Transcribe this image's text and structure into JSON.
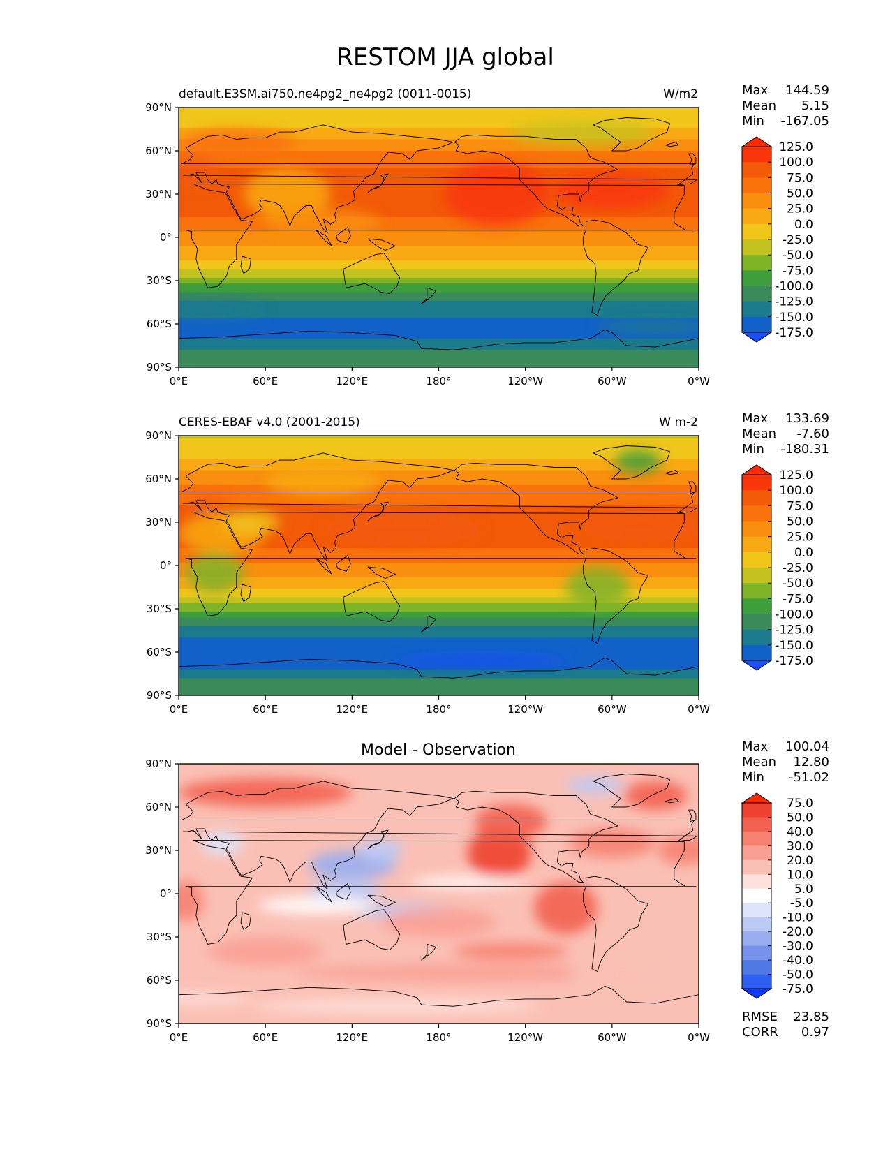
{
  "title": "RESTOM JJA global",
  "colors": {
    "levels_main": [
      "#1a4ff7",
      "#1261c9",
      "#1c7a8d",
      "#3a8a5a",
      "#3f9e3c",
      "#7fb328",
      "#c4c21f",
      "#f0c61b",
      "#f8a913",
      "#f98e0f",
      "#f9720b",
      "#f25a08",
      "#f9360a",
      "#ff2a00"
    ],
    "levels_diff": [
      "#0d39ff",
      "#2e5ff0",
      "#4f7ae6",
      "#7591eb",
      "#98aef0",
      "#bccaf6",
      "#dde4fb",
      "#ffffff",
      "#fde1dc",
      "#fbc0b5",
      "#f9a093",
      "#f68170",
      "#f2614f",
      "#ee412f",
      "#ff2a00"
    ],
    "land_outline": "#000000"
  },
  "panels": [
    {
      "id": "model",
      "left_title": "default.E3SM.ai750.ne4pg2_ne4pg2 (0011-0015)",
      "center_title": "",
      "units": "W/m2",
      "stats": [
        {
          "label": "Max",
          "value": "144.59"
        },
        {
          "label": "Mean",
          "value": "5.15"
        },
        {
          "label": "Min",
          "value": "-167.05"
        }
      ],
      "colorbar_ticks": [
        "125.0",
        "100.0",
        "75.0",
        "50.0",
        "25.0",
        "0.0",
        "-25.0",
        "-50.0",
        "-75.0",
        "-100.0",
        "-125.0",
        "-150.0",
        "-175.0"
      ],
      "extra_stats": []
    },
    {
      "id": "obs",
      "left_title": "CERES-EBAF v4.0 (2001-2015)",
      "center_title": "",
      "units": "W m-2",
      "stats": [
        {
          "label": "Max",
          "value": "133.69"
        },
        {
          "label": "Mean",
          "value": "-7.60"
        },
        {
          "label": "Min",
          "value": "-180.31"
        }
      ],
      "colorbar_ticks": [
        "125.0",
        "100.0",
        "75.0",
        "50.0",
        "25.0",
        "0.0",
        "-25.0",
        "-50.0",
        "-75.0",
        "-100.0",
        "-125.0",
        "-150.0",
        "-175.0"
      ],
      "extra_stats": []
    },
    {
      "id": "diff",
      "left_title": "",
      "center_title": "Model - Observation",
      "units": "",
      "stats": [
        {
          "label": "Max",
          "value": "100.04"
        },
        {
          "label": "Mean",
          "value": "12.80"
        },
        {
          "label": "Min",
          "value": "-51.02"
        }
      ],
      "colorbar_ticks": [
        "75.0",
        "50.0",
        "40.0",
        "30.0",
        "20.0",
        "10.0",
        "5.0",
        "-5.0",
        "-10.0",
        "-20.0",
        "-30.0",
        "-40.0",
        "-50.0",
        "-75.0"
      ],
      "extra_stats": [
        {
          "label": "RMSE",
          "value": "23.85"
        },
        {
          "label": "CORR",
          "value": "0.97"
        }
      ]
    }
  ],
  "chart_data": [
    {
      "type": "heatmap",
      "title": "default.E3SM.ai750.ne4pg2_ne4pg2 (0011-0015)",
      "units": "W/m2",
      "xlim": [
        0,
        360
      ],
      "ylim": [
        -90,
        90
      ],
      "x_ticks": [
        "0°E",
        "60°E",
        "120°E",
        "180°",
        "120°W",
        "60°W",
        "0°W"
      ],
      "y_ticks": [
        "90°N",
        "60°N",
        "30°N",
        "0°",
        "30°S",
        "60°S",
        "90°S"
      ],
      "levels": [
        -175,
        -150,
        -125,
        -100,
        -75,
        -50,
        -25,
        0,
        25,
        50,
        75,
        100,
        125
      ],
      "zonal_mean_profile": {
        "lat": [
          90,
          75,
          60,
          45,
          35,
          25,
          15,
          5,
          -5,
          -15,
          -25,
          -35,
          -45,
          -55,
          -62,
          -70,
          -80,
          -90
        ],
        "value": [
          -20,
          0,
          50,
          80,
          90,
          85,
          75,
          50,
          25,
          5,
          -40,
          -90,
          -130,
          -150,
          -165,
          -150,
          -120,
          -110
        ]
      },
      "max": 144.59,
      "mean": 5.15,
      "min": -167.05
    },
    {
      "type": "heatmap",
      "title": "CERES-EBAF v4.0 (2001-2015)",
      "units": "W m-2",
      "xlim": [
        0,
        360
      ],
      "ylim": [
        -90,
        90
      ],
      "x_ticks": [
        "0°E",
        "60°E",
        "120°E",
        "180°",
        "120°W",
        "60°W",
        "0°W"
      ],
      "y_ticks": [
        "90°N",
        "60°N",
        "30°N",
        "0°",
        "30°S",
        "60°S",
        "90°S"
      ],
      "levels": [
        -175,
        -150,
        -125,
        -100,
        -75,
        -50,
        -25,
        0,
        25,
        50,
        75,
        100,
        125
      ],
      "zonal_mean_profile": {
        "lat": [
          90,
          75,
          60,
          45,
          35,
          25,
          15,
          5,
          -5,
          -15,
          -25,
          -35,
          -45,
          -55,
          -62,
          -70,
          -80,
          -90
        ],
        "value": [
          -30,
          -5,
          40,
          70,
          85,
          90,
          80,
          55,
          30,
          5,
          -45,
          -95,
          -140,
          -165,
          -175,
          -160,
          -120,
          -110
        ]
      },
      "max": 133.69,
      "mean": -7.6,
      "min": -180.31
    },
    {
      "type": "heatmap",
      "title": "Model - Observation",
      "units": "",
      "xlim": [
        0,
        360
      ],
      "ylim": [
        -90,
        90
      ],
      "x_ticks": [
        "0°E",
        "60°E",
        "120°E",
        "180°",
        "120°W",
        "60°W",
        "0°W"
      ],
      "y_ticks": [
        "90°N",
        "60°N",
        "30°N",
        "0°",
        "30°S",
        "60°S",
        "90°S"
      ],
      "levels": [
        -75,
        -50,
        -40,
        -30,
        -20,
        -10,
        -5,
        5,
        10,
        20,
        30,
        40,
        50,
        75
      ],
      "max": 100.04,
      "mean": 12.8,
      "min": -51.02,
      "rmse": 23.85,
      "corr": 0.97
    }
  ]
}
